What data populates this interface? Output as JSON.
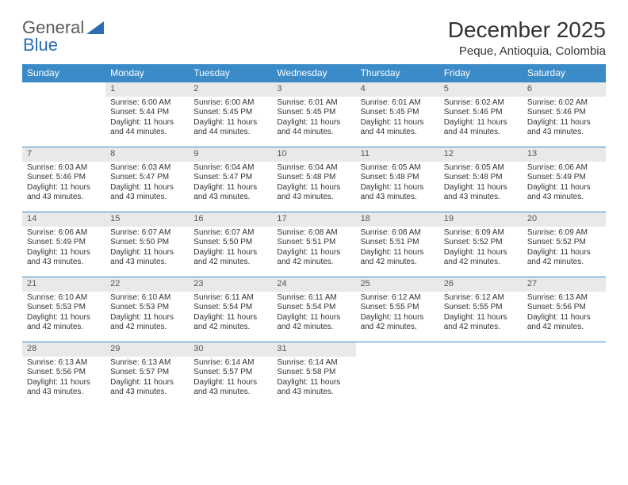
{
  "brand": {
    "part1": "General",
    "part2": "Blue"
  },
  "title": "December 2025",
  "location": "Peque, Antioquia, Colombia",
  "header_bg": "#3b8bc9",
  "daynum_bg": "#e9e9e9",
  "day_headers": [
    "Sunday",
    "Monday",
    "Tuesday",
    "Wednesday",
    "Thursday",
    "Friday",
    "Saturday"
  ],
  "weeks": [
    [
      null,
      {
        "n": "1",
        "sr": "Sunrise: 6:00 AM",
        "ss": "Sunset: 5:44 PM",
        "dl": "Daylight: 11 hours and 44 minutes."
      },
      {
        "n": "2",
        "sr": "Sunrise: 6:00 AM",
        "ss": "Sunset: 5:45 PM",
        "dl": "Daylight: 11 hours and 44 minutes."
      },
      {
        "n": "3",
        "sr": "Sunrise: 6:01 AM",
        "ss": "Sunset: 5:45 PM",
        "dl": "Daylight: 11 hours and 44 minutes."
      },
      {
        "n": "4",
        "sr": "Sunrise: 6:01 AM",
        "ss": "Sunset: 5:45 PM",
        "dl": "Daylight: 11 hours and 44 minutes."
      },
      {
        "n": "5",
        "sr": "Sunrise: 6:02 AM",
        "ss": "Sunset: 5:46 PM",
        "dl": "Daylight: 11 hours and 44 minutes."
      },
      {
        "n": "6",
        "sr": "Sunrise: 6:02 AM",
        "ss": "Sunset: 5:46 PM",
        "dl": "Daylight: 11 hours and 43 minutes."
      }
    ],
    [
      {
        "n": "7",
        "sr": "Sunrise: 6:03 AM",
        "ss": "Sunset: 5:46 PM",
        "dl": "Daylight: 11 hours and 43 minutes."
      },
      {
        "n": "8",
        "sr": "Sunrise: 6:03 AM",
        "ss": "Sunset: 5:47 PM",
        "dl": "Daylight: 11 hours and 43 minutes."
      },
      {
        "n": "9",
        "sr": "Sunrise: 6:04 AM",
        "ss": "Sunset: 5:47 PM",
        "dl": "Daylight: 11 hours and 43 minutes."
      },
      {
        "n": "10",
        "sr": "Sunrise: 6:04 AM",
        "ss": "Sunset: 5:48 PM",
        "dl": "Daylight: 11 hours and 43 minutes."
      },
      {
        "n": "11",
        "sr": "Sunrise: 6:05 AM",
        "ss": "Sunset: 5:48 PM",
        "dl": "Daylight: 11 hours and 43 minutes."
      },
      {
        "n": "12",
        "sr": "Sunrise: 6:05 AM",
        "ss": "Sunset: 5:48 PM",
        "dl": "Daylight: 11 hours and 43 minutes."
      },
      {
        "n": "13",
        "sr": "Sunrise: 6:06 AM",
        "ss": "Sunset: 5:49 PM",
        "dl": "Daylight: 11 hours and 43 minutes."
      }
    ],
    [
      {
        "n": "14",
        "sr": "Sunrise: 6:06 AM",
        "ss": "Sunset: 5:49 PM",
        "dl": "Daylight: 11 hours and 43 minutes."
      },
      {
        "n": "15",
        "sr": "Sunrise: 6:07 AM",
        "ss": "Sunset: 5:50 PM",
        "dl": "Daylight: 11 hours and 43 minutes."
      },
      {
        "n": "16",
        "sr": "Sunrise: 6:07 AM",
        "ss": "Sunset: 5:50 PM",
        "dl": "Daylight: 11 hours and 42 minutes."
      },
      {
        "n": "17",
        "sr": "Sunrise: 6:08 AM",
        "ss": "Sunset: 5:51 PM",
        "dl": "Daylight: 11 hours and 42 minutes."
      },
      {
        "n": "18",
        "sr": "Sunrise: 6:08 AM",
        "ss": "Sunset: 5:51 PM",
        "dl": "Daylight: 11 hours and 42 minutes."
      },
      {
        "n": "19",
        "sr": "Sunrise: 6:09 AM",
        "ss": "Sunset: 5:52 PM",
        "dl": "Daylight: 11 hours and 42 minutes."
      },
      {
        "n": "20",
        "sr": "Sunrise: 6:09 AM",
        "ss": "Sunset: 5:52 PM",
        "dl": "Daylight: 11 hours and 42 minutes."
      }
    ],
    [
      {
        "n": "21",
        "sr": "Sunrise: 6:10 AM",
        "ss": "Sunset: 5:53 PM",
        "dl": "Daylight: 11 hours and 42 minutes."
      },
      {
        "n": "22",
        "sr": "Sunrise: 6:10 AM",
        "ss": "Sunset: 5:53 PM",
        "dl": "Daylight: 11 hours and 42 minutes."
      },
      {
        "n": "23",
        "sr": "Sunrise: 6:11 AM",
        "ss": "Sunset: 5:54 PM",
        "dl": "Daylight: 11 hours and 42 minutes."
      },
      {
        "n": "24",
        "sr": "Sunrise: 6:11 AM",
        "ss": "Sunset: 5:54 PM",
        "dl": "Daylight: 11 hours and 42 minutes."
      },
      {
        "n": "25",
        "sr": "Sunrise: 6:12 AM",
        "ss": "Sunset: 5:55 PM",
        "dl": "Daylight: 11 hours and 42 minutes."
      },
      {
        "n": "26",
        "sr": "Sunrise: 6:12 AM",
        "ss": "Sunset: 5:55 PM",
        "dl": "Daylight: 11 hours and 42 minutes."
      },
      {
        "n": "27",
        "sr": "Sunrise: 6:13 AM",
        "ss": "Sunset: 5:56 PM",
        "dl": "Daylight: 11 hours and 42 minutes."
      }
    ],
    [
      {
        "n": "28",
        "sr": "Sunrise: 6:13 AM",
        "ss": "Sunset: 5:56 PM",
        "dl": "Daylight: 11 hours and 43 minutes."
      },
      {
        "n": "29",
        "sr": "Sunrise: 6:13 AM",
        "ss": "Sunset: 5:57 PM",
        "dl": "Daylight: 11 hours and 43 minutes."
      },
      {
        "n": "30",
        "sr": "Sunrise: 6:14 AM",
        "ss": "Sunset: 5:57 PM",
        "dl": "Daylight: 11 hours and 43 minutes."
      },
      {
        "n": "31",
        "sr": "Sunrise: 6:14 AM",
        "ss": "Sunset: 5:58 PM",
        "dl": "Daylight: 11 hours and 43 minutes."
      },
      null,
      null,
      null
    ]
  ]
}
